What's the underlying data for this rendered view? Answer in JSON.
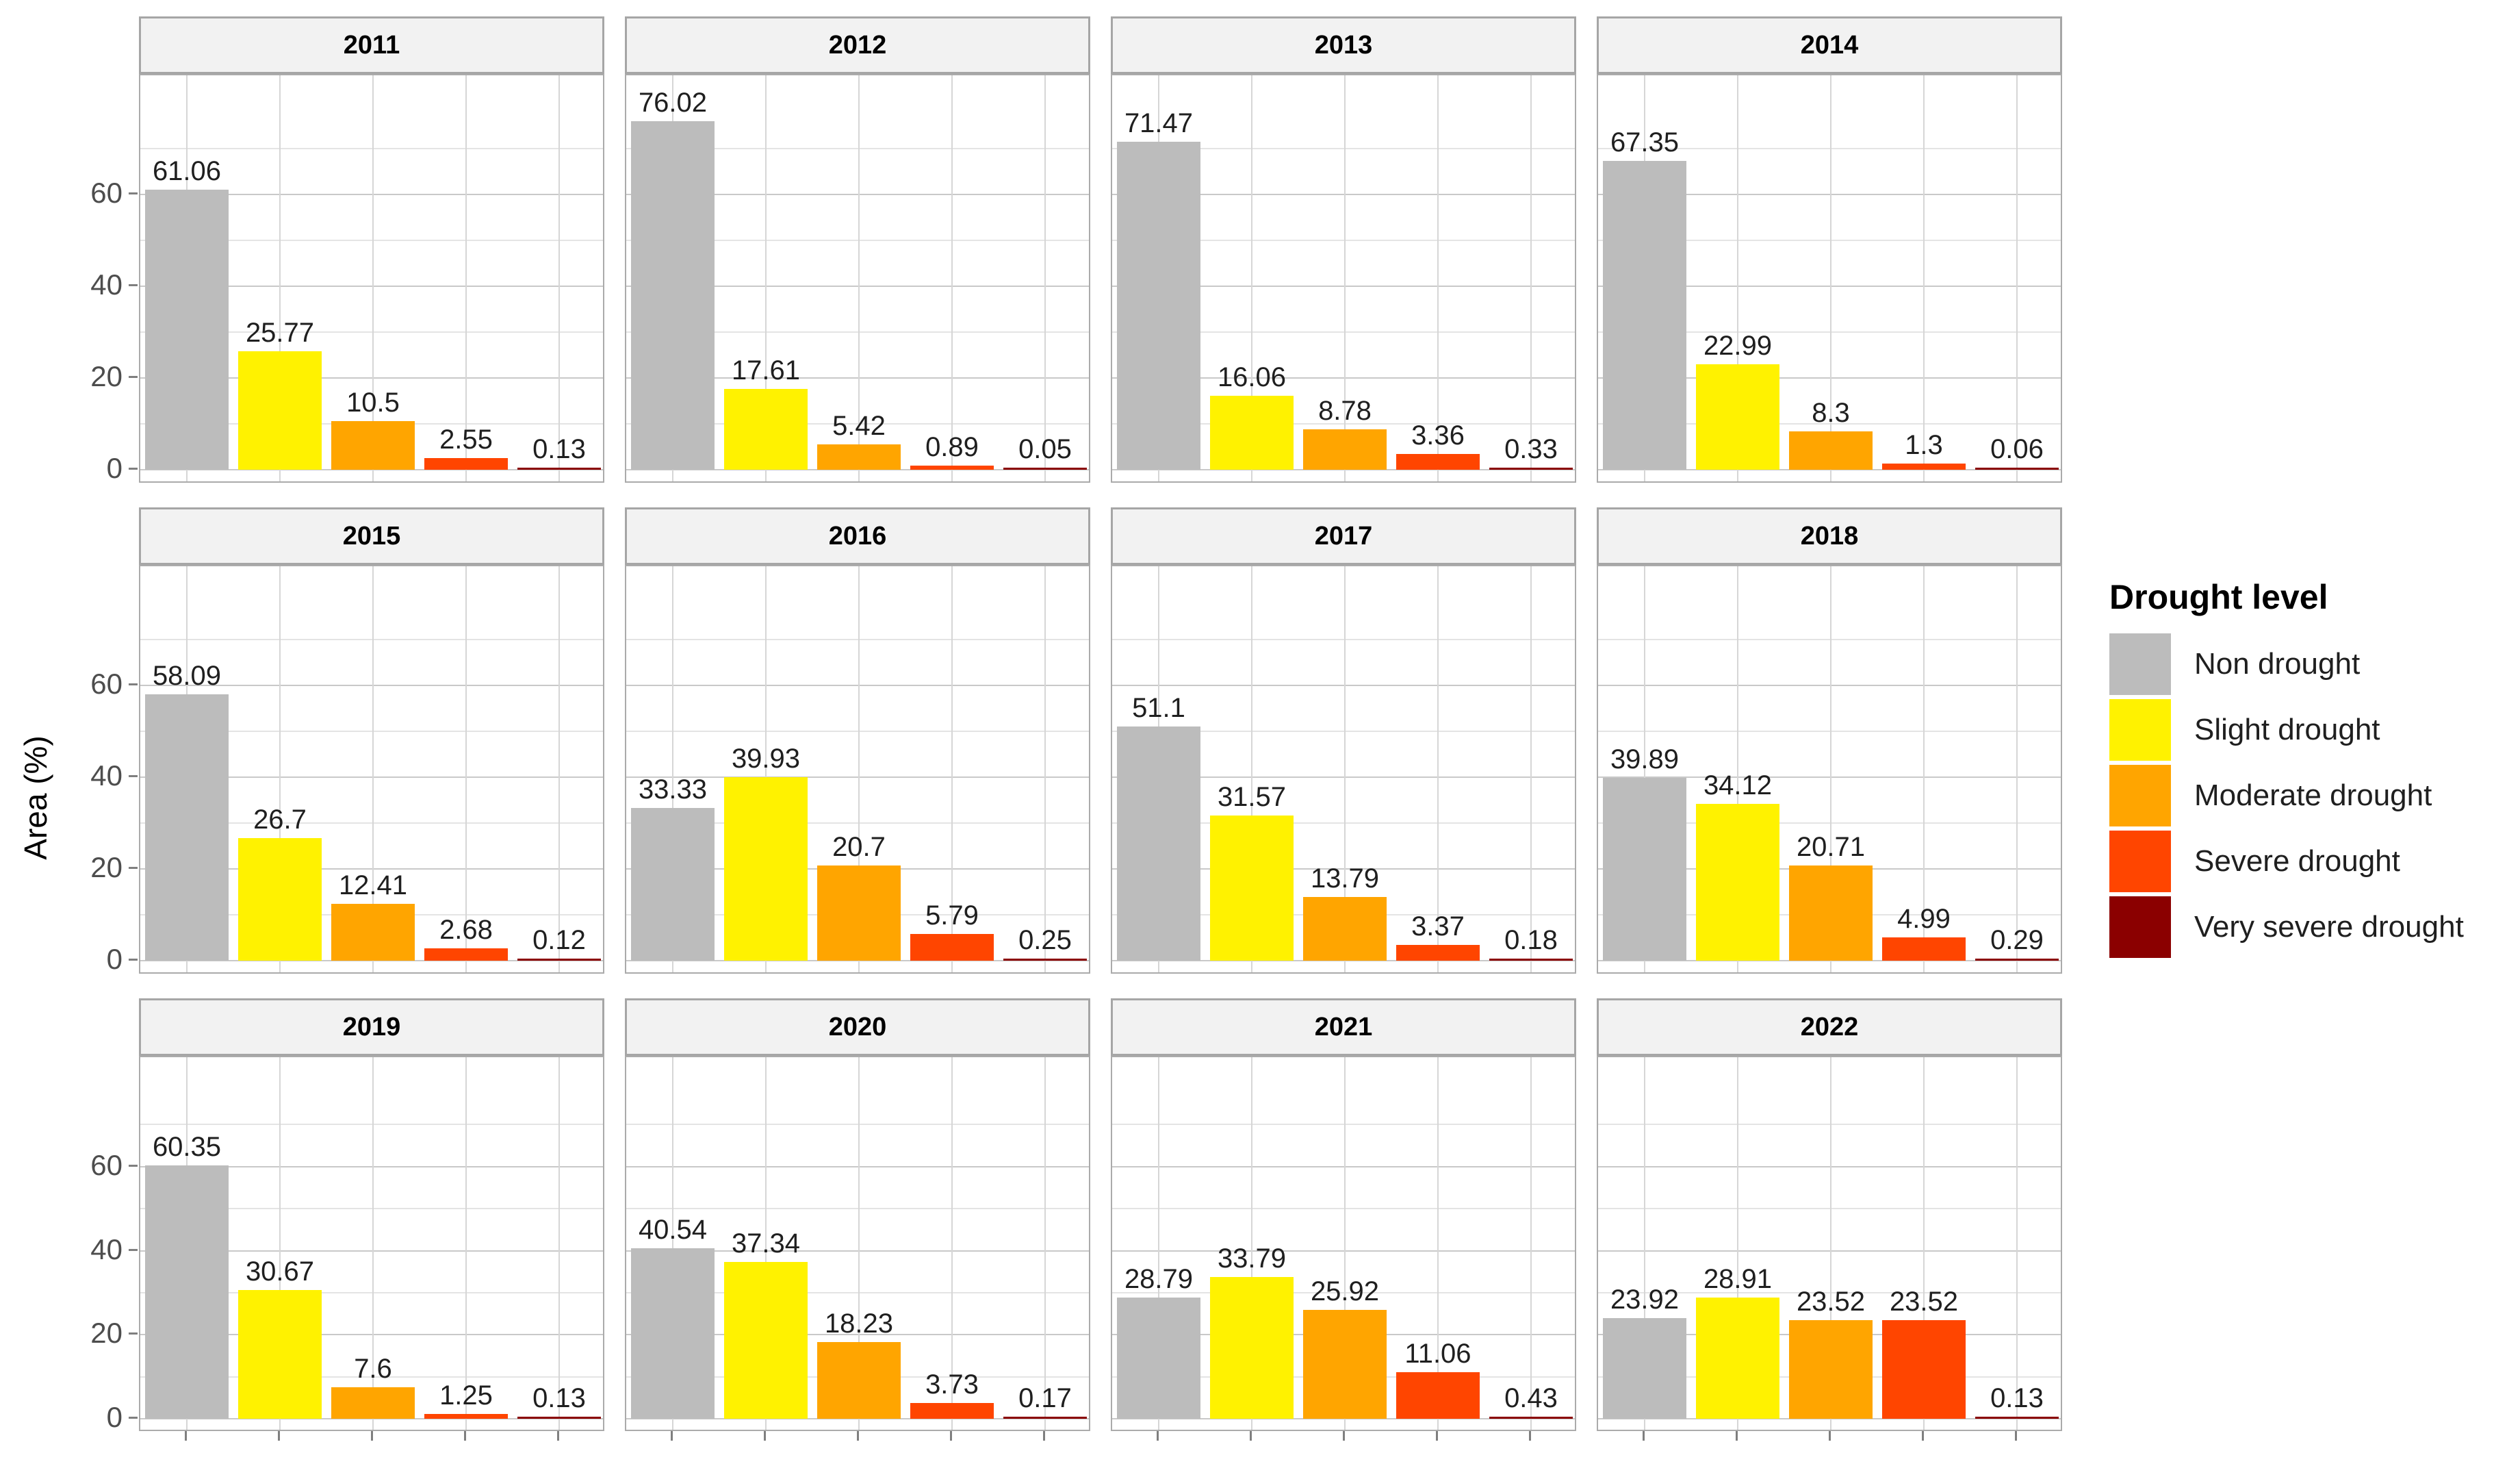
{
  "chart_data": {
    "type": "bar",
    "title": "",
    "ylabel": "Area (%)",
    "legend_title": "Drought level",
    "legend_position": "right",
    "facet_variable": "year",
    "categories": [
      "Non drought",
      "Slight drought",
      "Moderate drought",
      "Severe drought",
      "Very severe drought"
    ],
    "colors": [
      "#BCBCBC",
      "#FFF200",
      "#FFA500",
      "#FF4500",
      "#8B0000"
    ],
    "y_ticks": [
      0,
      20,
      40,
      60
    ],
    "y_minor_ticks": [
      10,
      30,
      50,
      70
    ],
    "ylim": [
      0,
      80
    ],
    "grid": true,
    "facets": [
      {
        "year": "2011",
        "values": [
          61.06,
          25.77,
          10.5,
          2.55,
          0.13
        ]
      },
      {
        "year": "2012",
        "values": [
          76.02,
          17.61,
          5.42,
          0.89,
          0.05
        ]
      },
      {
        "year": "2013",
        "values": [
          71.47,
          16.06,
          8.78,
          3.36,
          0.33
        ]
      },
      {
        "year": "2014",
        "values": [
          67.35,
          22.99,
          8.3,
          1.3,
          0.06
        ]
      },
      {
        "year": "2015",
        "values": [
          58.09,
          26.7,
          12.41,
          2.68,
          0.12
        ]
      },
      {
        "year": "2016",
        "values": [
          33.33,
          39.93,
          20.7,
          5.79,
          0.25
        ]
      },
      {
        "year": "2017",
        "values": [
          51.1,
          31.57,
          13.79,
          3.37,
          0.18
        ]
      },
      {
        "year": "2018",
        "values": [
          39.89,
          34.12,
          20.71,
          4.99,
          0.29
        ]
      },
      {
        "year": "2019",
        "values": [
          60.35,
          30.67,
          7.6,
          1.25,
          0.13
        ]
      },
      {
        "year": "2020",
        "values": [
          40.54,
          37.34,
          18.23,
          3.73,
          0.17
        ]
      },
      {
        "year": "2021",
        "values": [
          28.79,
          33.79,
          25.92,
          11.06,
          0.43
        ]
      },
      {
        "year": "2022",
        "values": [
          23.92,
          28.91,
          23.52,
          23.52,
          0.13
        ]
      }
    ]
  }
}
